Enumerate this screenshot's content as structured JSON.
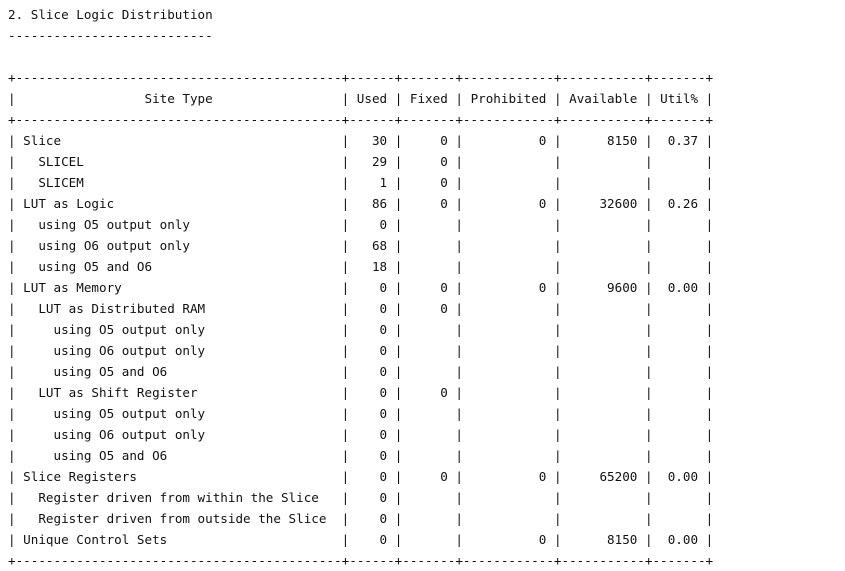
{
  "section": {
    "title": "2. Slice Logic Distribution",
    "underline": "---------------------------"
  },
  "table": {
    "border": "+-------------------------------------------+------+-------+------------+-----------+-------+",
    "columns": [
      "Site Type",
      "Used",
      "Fixed",
      "Prohibited",
      "Available",
      "Util%"
    ],
    "rows": [
      {
        "site_type": "Slice",
        "used": "30",
        "fixed": "0",
        "prohibited": "0",
        "available": "8150",
        "util": "0.37"
      },
      {
        "site_type": "  SLICEL",
        "used": "29",
        "fixed": "0",
        "prohibited": "",
        "available": "",
        "util": ""
      },
      {
        "site_type": "  SLICEM",
        "used": "1",
        "fixed": "0",
        "prohibited": "",
        "available": "",
        "util": ""
      },
      {
        "site_type": "LUT as Logic",
        "used": "86",
        "fixed": "0",
        "prohibited": "0",
        "available": "32600",
        "util": "0.26"
      },
      {
        "site_type": "  using O5 output only",
        "used": "0",
        "fixed": "",
        "prohibited": "",
        "available": "",
        "util": ""
      },
      {
        "site_type": "  using O6 output only",
        "used": "68",
        "fixed": "",
        "prohibited": "",
        "available": "",
        "util": ""
      },
      {
        "site_type": "  using O5 and O6",
        "used": "18",
        "fixed": "",
        "prohibited": "",
        "available": "",
        "util": ""
      },
      {
        "site_type": "LUT as Memory",
        "used": "0",
        "fixed": "0",
        "prohibited": "0",
        "available": "9600",
        "util": "0.00"
      },
      {
        "site_type": "  LUT as Distributed RAM",
        "used": "0",
        "fixed": "0",
        "prohibited": "",
        "available": "",
        "util": ""
      },
      {
        "site_type": "    using O5 output only",
        "used": "0",
        "fixed": "",
        "prohibited": "",
        "available": "",
        "util": ""
      },
      {
        "site_type": "    using O6 output only",
        "used": "0",
        "fixed": "",
        "prohibited": "",
        "available": "",
        "util": ""
      },
      {
        "site_type": "    using O5 and O6",
        "used": "0",
        "fixed": "",
        "prohibited": "",
        "available": "",
        "util": ""
      },
      {
        "site_type": "  LUT as Shift Register",
        "used": "0",
        "fixed": "0",
        "prohibited": "",
        "available": "",
        "util": ""
      },
      {
        "site_type": "    using O5 output only",
        "used": "0",
        "fixed": "",
        "prohibited": "",
        "available": "",
        "util": ""
      },
      {
        "site_type": "    using O6 output only",
        "used": "0",
        "fixed": "",
        "prohibited": "",
        "available": "",
        "util": ""
      },
      {
        "site_type": "    using O5 and O6",
        "used": "0",
        "fixed": "",
        "prohibited": "",
        "available": "",
        "util": ""
      },
      {
        "site_type": "Slice Registers",
        "used": "0",
        "fixed": "0",
        "prohibited": "0",
        "available": "65200",
        "util": "0.00"
      },
      {
        "site_type": "  Register driven from within the Slice",
        "used": "0",
        "fixed": "",
        "prohibited": "",
        "available": "",
        "util": ""
      },
      {
        "site_type": "  Register driven from outside the Slice",
        "used": "0",
        "fixed": "",
        "prohibited": "",
        "available": "",
        "util": ""
      },
      {
        "site_type": "Unique Control Sets",
        "used": "0",
        "fixed": "",
        "prohibited": "0",
        "available": "8150",
        "util": "0.00"
      }
    ]
  }
}
